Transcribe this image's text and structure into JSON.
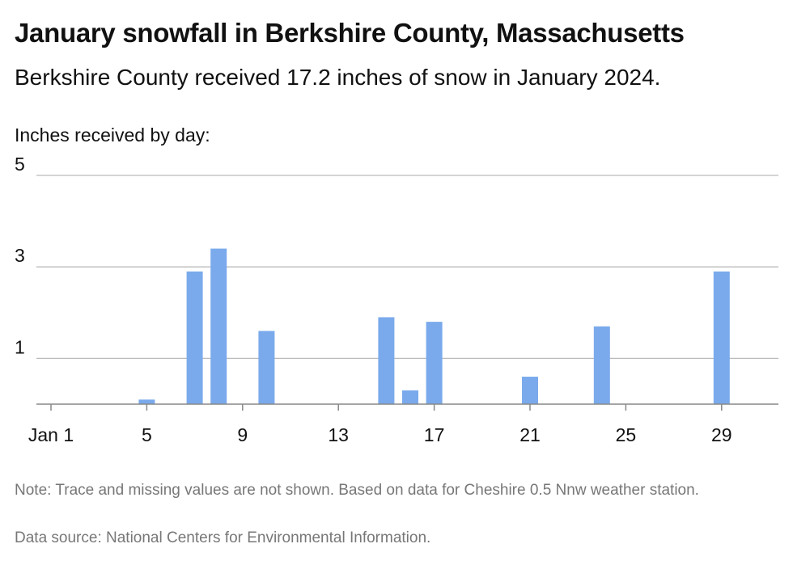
{
  "header": {
    "title": "January snowfall in Berkshire County, Massachusetts",
    "subtitle": "Berkshire County received 17.2 inches of snow in January 2024.",
    "axis_caption": "Inches received by day:"
  },
  "footer": {
    "note": "Note: Trace and missing values are not shown. Based on data for Cheshire 0.5 Nnw weather station.",
    "source": "Data source: National Centers for Environmental Information."
  },
  "chart_data": {
    "type": "bar",
    "x": [
      1,
      2,
      3,
      4,
      5,
      6,
      7,
      8,
      9,
      10,
      11,
      12,
      13,
      14,
      15,
      16,
      17,
      18,
      19,
      20,
      21,
      22,
      23,
      24,
      25,
      26,
      27,
      28,
      29,
      30,
      31
    ],
    "values": [
      0,
      0,
      0,
      0,
      0.1,
      0,
      2.9,
      3.4,
      0,
      1.6,
      0,
      0,
      0,
      0,
      1.9,
      0.3,
      1.8,
      0,
      0,
      0,
      0.6,
      0,
      0,
      1.7,
      0,
      0,
      0,
      0,
      2.9,
      0,
      0
    ],
    "x_tick_values": [
      1,
      5,
      9,
      13,
      17,
      21,
      25,
      29
    ],
    "x_tick_labels": [
      "Jan 1",
      "5",
      "9",
      "13",
      "17",
      "21",
      "25",
      "29"
    ],
    "y_ticks": [
      1,
      3,
      5
    ],
    "ylim": [
      0,
      5
    ],
    "bar_color": "#7aaaec",
    "grid": true,
    "grid_color": "#bbbbbb",
    "axis_color": "#888888"
  }
}
